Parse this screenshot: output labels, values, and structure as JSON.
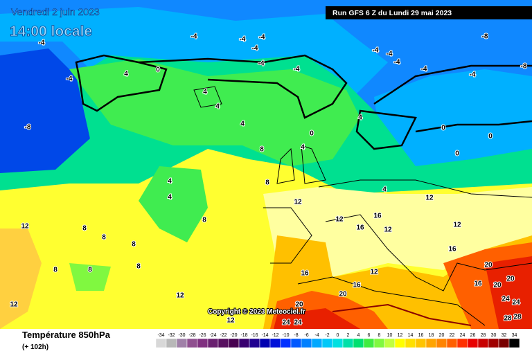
{
  "header": {
    "date": "Vendredi 2 juin 2023",
    "time": "14:00 locale",
    "run": "Run GFS 6 Z du Lundi 29 mai 2023"
  },
  "footer": {
    "title": "Température 850hPa",
    "lead": "(+ 102h)",
    "copyright": "Copyright © 2023 Meteociel.fr"
  },
  "colorbar": {
    "ticks": [
      -34,
      -32,
      -30,
      -28,
      -26,
      -24,
      -22,
      -20,
      -18,
      -16,
      -14,
      -12,
      -10,
      -8,
      -6,
      -4,
      -2,
      0,
      2,
      4,
      6,
      8,
      10,
      12,
      14,
      16,
      18,
      20,
      22,
      24,
      26,
      28,
      30,
      32,
      34
    ],
    "colors": [
      "#d8d8d8",
      "#b8b8b8",
      "#a080a8",
      "#905090",
      "#803080",
      "#6a2070",
      "#581060",
      "#480050",
      "#380070",
      "#200090",
      "#0000b0",
      "#0010d8",
      "#0030ff",
      "#0058ff",
      "#0080ff",
      "#00a8ff",
      "#00c8f8",
      "#00e0e0",
      "#00e0a8",
      "#00e070",
      "#40ec40",
      "#80f840",
      "#c0ff40",
      "#ffff00",
      "#ffe000",
      "#ffc400",
      "#ffa400",
      "#ff8400",
      "#ff6000",
      "#ff3000",
      "#e80000",
      "#c80000",
      "#a00000",
      "#780000",
      "#000000"
    ]
  },
  "contour_labels": [
    "-4",
    "-4",
    "-4",
    "-4",
    "-4",
    "-4",
    "-4",
    "-4",
    "-4",
    "-4",
    "-4",
    "-4",
    "-4",
    "-8",
    "-8",
    "-8",
    "4",
    "4",
    "4",
    "4",
    "4",
    "4",
    "4",
    "4",
    "4",
    "0",
    "0",
    "0",
    "0",
    "0",
    "8",
    "8",
    "8",
    "8",
    "8",
    "8",
    "8",
    "8",
    "8",
    "12",
    "12",
    "12",
    "12",
    "12",
    "12",
    "12",
    "12",
    "12",
    "12",
    "16",
    "16",
    "16",
    "16",
    "16",
    "16",
    "20",
    "20",
    "20",
    "20",
    "20",
    "24",
    "24",
    "24",
    "24",
    "28",
    "28"
  ]
}
